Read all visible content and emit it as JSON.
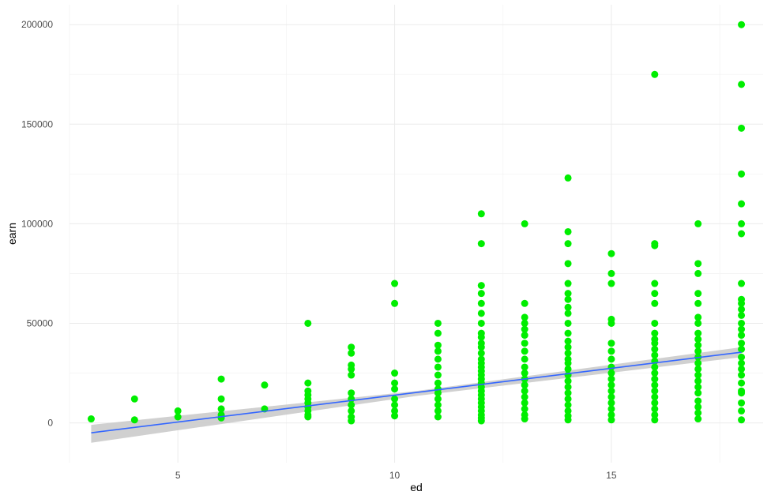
{
  "chart_data": {
    "type": "scatter",
    "title": "",
    "xlabel": "ed",
    "ylabel": "earn",
    "xlim": [
      2.5,
      18.5
    ],
    "ylim": [
      -20000,
      210000
    ],
    "x_ticks": [
      5,
      10,
      15
    ],
    "x_tick_labels": [
      "5",
      "10",
      "15"
    ],
    "y_ticks": [
      0,
      50000,
      100000,
      150000,
      200000
    ],
    "y_tick_labels": [
      "0",
      "50000",
      "100000",
      "150000",
      "200000"
    ],
    "grid": true,
    "legend": "none",
    "colors": {
      "points": "#00ee00",
      "fit_line": "#3366ff",
      "confidence_band": "#c8c8c8",
      "grid": "#ebebeb"
    },
    "smooth": {
      "method": "linear fit with confidence band",
      "line": [
        [
          3,
          -5000
        ],
        [
          18,
          35500
        ]
      ],
      "band_lower": [
        [
          3,
          -10000
        ],
        [
          10.5,
          13500
        ],
        [
          18,
          33000
        ]
      ],
      "band_upper": [
        [
          3,
          -1000
        ],
        [
          10.5,
          16000
        ],
        [
          18,
          38000
        ]
      ]
    },
    "points": [
      [
        3,
        2000
      ],
      [
        4,
        12000
      ],
      [
        4,
        1500
      ],
      [
        5,
        6000
      ],
      [
        5,
        3000
      ],
      [
        6,
        22000
      ],
      [
        6,
        12000
      ],
      [
        6,
        7000
      ],
      [
        6,
        4000
      ],
      [
        6,
        2500
      ],
      [
        7,
        19000
      ],
      [
        7,
        7000
      ],
      [
        8,
        50000
      ],
      [
        8,
        20000
      ],
      [
        8,
        16000
      ],
      [
        8,
        14000
      ],
      [
        8,
        12000
      ],
      [
        8,
        10000
      ],
      [
        8,
        8000
      ],
      [
        8,
        6000
      ],
      [
        8,
        4000
      ],
      [
        8,
        3000
      ],
      [
        9,
        38000
      ],
      [
        9,
        35000
      ],
      [
        9,
        29000
      ],
      [
        9,
        27000
      ],
      [
        9,
        24000
      ],
      [
        9,
        15000
      ],
      [
        9,
        12000
      ],
      [
        9,
        9000
      ],
      [
        9,
        6000
      ],
      [
        9,
        3000
      ],
      [
        9,
        1000
      ],
      [
        10,
        70000
      ],
      [
        10,
        60000
      ],
      [
        10,
        25000
      ],
      [
        10,
        20000
      ],
      [
        10,
        17000
      ],
      [
        10,
        12000
      ],
      [
        10,
        9000
      ],
      [
        10,
        6000
      ],
      [
        10,
        3500
      ],
      [
        11,
        50000
      ],
      [
        11,
        45000
      ],
      [
        11,
        39000
      ],
      [
        11,
        36000
      ],
      [
        11,
        32000
      ],
      [
        11,
        28000
      ],
      [
        11,
        24000
      ],
      [
        11,
        20000
      ],
      [
        11,
        17000
      ],
      [
        11,
        15000
      ],
      [
        11,
        12000
      ],
      [
        11,
        9000
      ],
      [
        11,
        6000
      ],
      [
        11,
        3000
      ],
      [
        12,
        105000
      ],
      [
        12,
        90000
      ],
      [
        12,
        69000
      ],
      [
        12,
        65000
      ],
      [
        12,
        60000
      ],
      [
        12,
        55000
      ],
      [
        12,
        50000
      ],
      [
        12,
        45000
      ],
      [
        12,
        43000
      ],
      [
        12,
        40000
      ],
      [
        12,
        38000
      ],
      [
        12,
        35000
      ],
      [
        12,
        32000
      ],
      [
        12,
        30000
      ],
      [
        12,
        28000
      ],
      [
        12,
        26000
      ],
      [
        12,
        24000
      ],
      [
        12,
        22000
      ],
      [
        12,
        20000
      ],
      [
        12,
        18000
      ],
      [
        12,
        16000
      ],
      [
        12,
        14000
      ],
      [
        12,
        12000
      ],
      [
        12,
        10000
      ],
      [
        12,
        8000
      ],
      [
        12,
        6000
      ],
      [
        12,
        4000
      ],
      [
        12,
        2500
      ],
      [
        12,
        1000
      ],
      [
        13,
        100000
      ],
      [
        13,
        60000
      ],
      [
        13,
        53000
      ],
      [
        13,
        50000
      ],
      [
        13,
        47000
      ],
      [
        13,
        44000
      ],
      [
        13,
        40000
      ],
      [
        13,
        36000
      ],
      [
        13,
        32000
      ],
      [
        13,
        28000
      ],
      [
        13,
        25000
      ],
      [
        13,
        22000
      ],
      [
        13,
        19000
      ],
      [
        13,
        16000
      ],
      [
        13,
        13000
      ],
      [
        13,
        10000
      ],
      [
        13,
        7000
      ],
      [
        13,
        4000
      ],
      [
        13,
        2000
      ],
      [
        14,
        123000
      ],
      [
        14,
        96000
      ],
      [
        14,
        90000
      ],
      [
        14,
        80000
      ],
      [
        14,
        70000
      ],
      [
        14,
        65000
      ],
      [
        14,
        62000
      ],
      [
        14,
        58000
      ],
      [
        14,
        55000
      ],
      [
        14,
        50000
      ],
      [
        14,
        45000
      ],
      [
        14,
        41000
      ],
      [
        14,
        38000
      ],
      [
        14,
        35000
      ],
      [
        14,
        32000
      ],
      [
        14,
        30000
      ],
      [
        14,
        27000
      ],
      [
        14,
        24000
      ],
      [
        14,
        21000
      ],
      [
        14,
        18000
      ],
      [
        14,
        15000
      ],
      [
        14,
        12000
      ],
      [
        14,
        9000
      ],
      [
        14,
        6000
      ],
      [
        14,
        3500
      ],
      [
        14,
        1500
      ],
      [
        15,
        85000
      ],
      [
        15,
        75000
      ],
      [
        15,
        70000
      ],
      [
        15,
        52000
      ],
      [
        15,
        50000
      ],
      [
        15,
        40000
      ],
      [
        15,
        36000
      ],
      [
        15,
        32000
      ],
      [
        15,
        28000
      ],
      [
        15,
        25000
      ],
      [
        15,
        22000
      ],
      [
        15,
        19000
      ],
      [
        15,
        16000
      ],
      [
        15,
        13000
      ],
      [
        15,
        10000
      ],
      [
        15,
        7000
      ],
      [
        15,
        4000
      ],
      [
        15,
        1500
      ],
      [
        16,
        175000
      ],
      [
        16,
        90000
      ],
      [
        16,
        89000
      ],
      [
        16,
        70000
      ],
      [
        16,
        65000
      ],
      [
        16,
        60000
      ],
      [
        16,
        50000
      ],
      [
        16,
        45000
      ],
      [
        16,
        42000
      ],
      [
        16,
        40000
      ],
      [
        16,
        37000
      ],
      [
        16,
        34000
      ],
      [
        16,
        31000
      ],
      [
        16,
        28000
      ],
      [
        16,
        25000
      ],
      [
        16,
        22000
      ],
      [
        16,
        19000
      ],
      [
        16,
        16000
      ],
      [
        16,
        13000
      ],
      [
        16,
        10000
      ],
      [
        16,
        7000
      ],
      [
        16,
        4000
      ],
      [
        16,
        1500
      ],
      [
        17,
        100000
      ],
      [
        17,
        80000
      ],
      [
        17,
        75000
      ],
      [
        17,
        65000
      ],
      [
        17,
        60000
      ],
      [
        17,
        53000
      ],
      [
        17,
        50000
      ],
      [
        17,
        45000
      ],
      [
        17,
        42000
      ],
      [
        17,
        39000
      ],
      [
        17,
        36000
      ],
      [
        17,
        33000
      ],
      [
        17,
        30000
      ],
      [
        17,
        27000
      ],
      [
        17,
        24000
      ],
      [
        17,
        21000
      ],
      [
        17,
        18000
      ],
      [
        17,
        15000
      ],
      [
        17,
        11000
      ],
      [
        17,
        8000
      ],
      [
        17,
        5000
      ],
      [
        17,
        2000
      ],
      [
        18,
        200000
      ],
      [
        18,
        170000
      ],
      [
        18,
        148000
      ],
      [
        18,
        125000
      ],
      [
        18,
        110000
      ],
      [
        18,
        100000
      ],
      [
        18,
        95000
      ],
      [
        18,
        70000
      ],
      [
        18,
        62000
      ],
      [
        18,
        60000
      ],
      [
        18,
        57000
      ],
      [
        18,
        54000
      ],
      [
        18,
        50000
      ],
      [
        18,
        47000
      ],
      [
        18,
        44000
      ],
      [
        18,
        40000
      ],
      [
        18,
        37000
      ],
      [
        18,
        33000
      ],
      [
        18,
        30000
      ],
      [
        18,
        27000
      ],
      [
        18,
        24000
      ],
      [
        18,
        20000
      ],
      [
        18,
        16000
      ],
      [
        18,
        15000
      ],
      [
        18,
        10000
      ],
      [
        18,
        6000
      ],
      [
        18,
        1500
      ]
    ]
  }
}
